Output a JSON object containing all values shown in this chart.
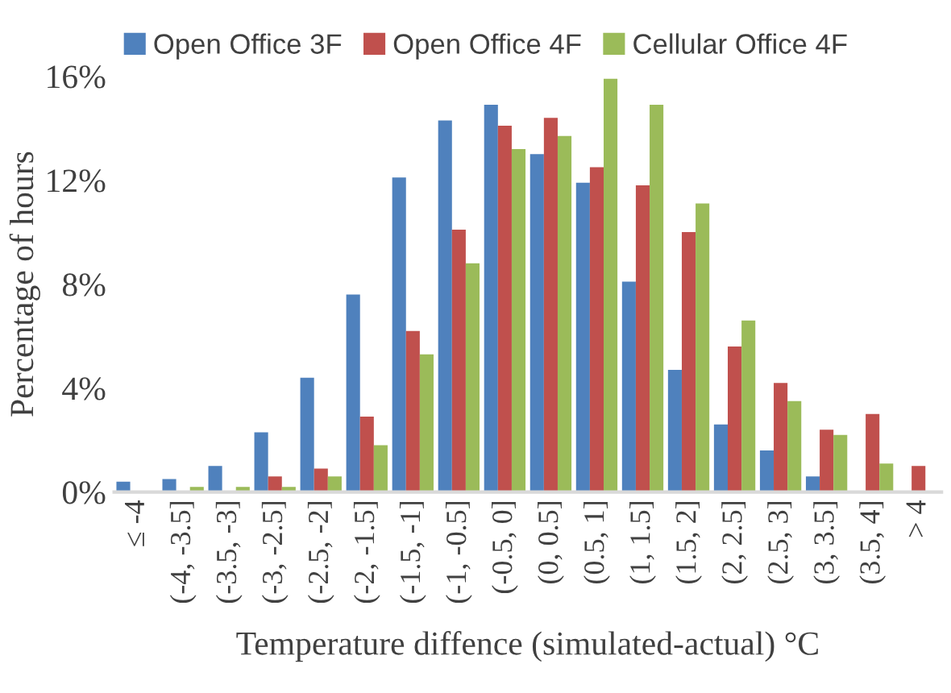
{
  "chart_data": {
    "type": "bar",
    "xlabel": "Temperature diffence (simulated-actual) °C",
    "ylabel": "Percentage of hours",
    "categories": [
      "≤ -4",
      "(-4, -3.5]",
      "(-3.5, -3]",
      "(-3, -2.5]",
      "(-2.5, -2]",
      "(-2, -1.5]",
      "(-1.5, -1]",
      "(-1, -0.5]",
      "(-0.5, 0]",
      "(0, 0.5]",
      "(0.5, 1]",
      "(1, 1.5]",
      "(1.5, 2]",
      "(2, 2.5]",
      "(2.5, 3]",
      "(3, 3.5]",
      "(3.5, 4]",
      "> 4"
    ],
    "series": [
      {
        "name": "Open Office 3F",
        "color": "#4f81bd",
        "values": [
          0.4,
          0.5,
          1.0,
          2.3,
          4.4,
          7.6,
          12.1,
          14.3,
          14.9,
          13.0,
          11.9,
          8.1,
          4.7,
          2.6,
          1.6,
          0.6,
          null,
          null
        ]
      },
      {
        "name": "Open Office 4F",
        "color": "#c0504d",
        "values": [
          null,
          null,
          null,
          0.6,
          0.9,
          2.9,
          6.2,
          10.1,
          14.1,
          14.4,
          12.5,
          11.8,
          10.0,
          5.6,
          4.2,
          2.4,
          3.0,
          1.0
        ]
      },
      {
        "name": "Cellular Office 4F",
        "color": "#9bbb59",
        "values": [
          null,
          0.2,
          0.2,
          0.2,
          0.6,
          1.8,
          5.3,
          8.8,
          13.2,
          13.7,
          15.9,
          14.9,
          11.1,
          6.6,
          3.5,
          2.2,
          1.1,
          null
        ]
      }
    ],
    "ylim": [
      0,
      16
    ],
    "yticks": [
      {
        "value": 0,
        "label": "0%"
      },
      {
        "value": 4,
        "label": "4%"
      },
      {
        "value": 8,
        "label": "8%"
      },
      {
        "value": 12,
        "label": "12%"
      },
      {
        "value": 16,
        "label": "16%"
      }
    ],
    "grid": false,
    "legend": "top"
  }
}
